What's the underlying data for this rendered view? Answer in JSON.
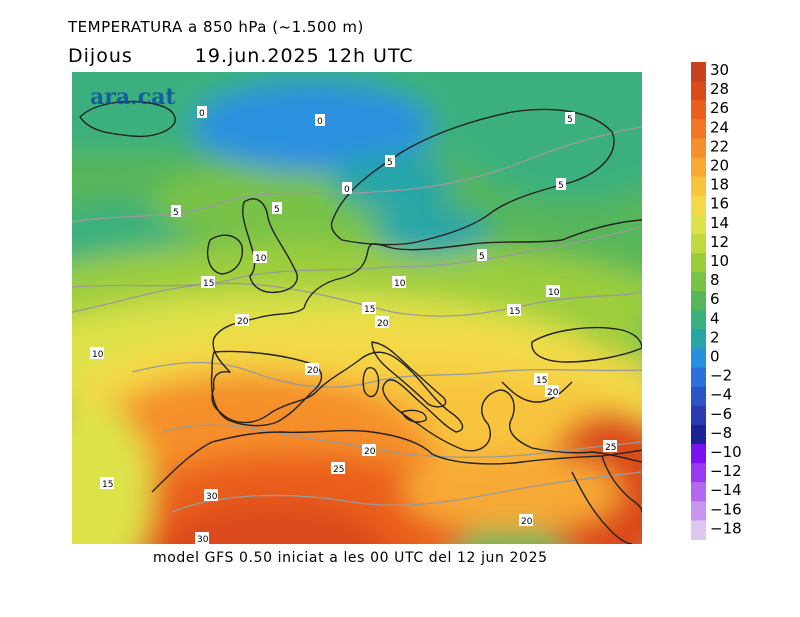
{
  "title": "TEMPERATURA a 850 hPa (~1.500 m)",
  "day": "Dijous",
  "date": "19.jun.2025 12h UTC",
  "footer": "model GFS 0.50 iniciat a les 00 UTC del 12 jun 2025",
  "brand": "ara.cat",
  "legend": {
    "levels": [
      "30",
      "28",
      "26",
      "24",
      "22",
      "20",
      "18",
      "16",
      "14",
      "12",
      "10",
      "8",
      "6",
      "4",
      "2",
      "0",
      "−2",
      "−4",
      "−6",
      "−8",
      "−10",
      "−12",
      "−14",
      "−16",
      "−18"
    ],
    "colors": [
      "#c8401e",
      "#dc4a1c",
      "#ea5f1c",
      "#f27624",
      "#f58f2a",
      "#f7a934",
      "#f8c43c",
      "#f4d846",
      "#dde24a",
      "#bfd93f",
      "#9cce3c",
      "#78c246",
      "#56b65a",
      "#3ab07e",
      "#28a6a7",
      "#2990e0",
      "#2a70df",
      "#2a55c7",
      "#2a3ab0",
      "#1a2296",
      "#7a12f0",
      "#9a3aee",
      "#b468ee",
      "#c896ee",
      "#ddc8f2"
    ]
  },
  "contour_labels": [
    "0",
    "0",
    "0",
    "5",
    "5",
    "5",
    "5",
    "5",
    "5",
    "10",
    "10",
    "10",
    "10",
    "15",
    "15",
    "15",
    "15",
    "15",
    "20",
    "20",
    "20",
    "20",
    "20",
    "20",
    "25",
    "25",
    "30",
    "30"
  ]
}
